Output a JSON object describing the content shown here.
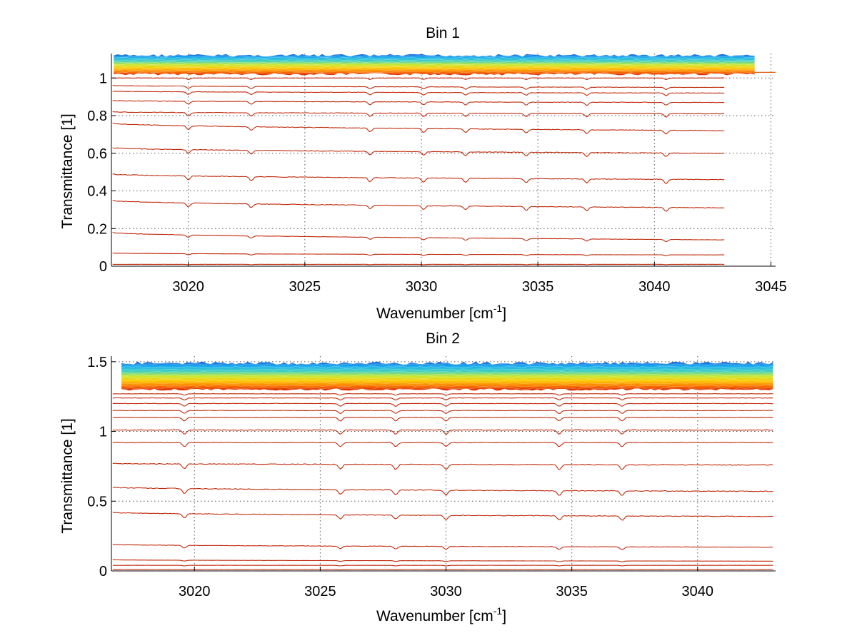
{
  "chart_data": [
    {
      "type": "line",
      "title": "Bin 1",
      "xlabel": "Wavenumber [cm",
      "xlabel_sup": "-1",
      "xlabel_end": "]",
      "ylabel": "Transmittance [1]",
      "xlim": [
        3016.7,
        3045.2
      ],
      "ylim": [
        0,
        1.13
      ],
      "xticks": [
        3020,
        3025,
        3030,
        3035,
        3040,
        3045
      ],
      "yticks": [
        0,
        0.2,
        0.4,
        0.6,
        0.8,
        1
      ],
      "ytick_labels": [
        "0",
        "0.2",
        "0.4",
        "0.6",
        "0.8",
        "1"
      ],
      "grid": true,
      "x_end": 3043,
      "dips": [
        3020,
        3022.7,
        3027.8,
        3030.1,
        3031.9,
        3034.5,
        3037.1,
        3040.5
      ],
      "series": [
        {
          "start": 0.01,
          "end": 0.01,
          "dip_scale": 0.002
        },
        {
          "start": 0.07,
          "end": 0.06,
          "dip_scale": 0.006
        },
        {
          "start": 0.18,
          "end": 0.14,
          "dip_scale": 0.012
        },
        {
          "start": 0.35,
          "end": 0.31,
          "dip_scale": 0.02
        },
        {
          "start": 0.49,
          "end": 0.46,
          "dip_scale": 0.022
        },
        {
          "start": 0.63,
          "end": 0.6,
          "dip_scale": 0.02
        },
        {
          "start": 0.76,
          "end": 0.72,
          "dip_scale": 0.02
        },
        {
          "start": 0.82,
          "end": 0.81,
          "dip_scale": 0.018
        },
        {
          "start": 0.88,
          "end": 0.87,
          "dip_scale": 0.016
        },
        {
          "start": 0.93,
          "end": 0.92,
          "dip_scale": 0.014
        },
        {
          "start": 0.96,
          "end": 0.95,
          "dip_scale": 0.012
        },
        {
          "start": 1.0,
          "end": 1.0,
          "dip_scale": 0.008
        }
      ],
      "band": {
        "x_start": 3016.8,
        "x_end": 3044.3,
        "y_low": 1.02,
        "y_high": 1.12
      },
      "flat_line": {
        "y": 1.03,
        "x_start": 3044.3,
        "x_end": 3045.2
      }
    },
    {
      "type": "line",
      "title": "Bin 2",
      "xlabel": "Wavenumber [cm",
      "xlabel_sup": "-1",
      "xlabel_end": "]",
      "ylabel": "Transmittance [1]",
      "xlim": [
        3016.7,
        3043.1
      ],
      "ylim": [
        0,
        1.54
      ],
      "xticks": [
        3020,
        3025,
        3030,
        3035,
        3040
      ],
      "yticks": [
        0,
        0.5,
        1,
        1.5
      ],
      "ytick_labels": [
        "0",
        "0.5",
        "1",
        "1.5"
      ],
      "grid": true,
      "x_end": 3043,
      "dips": [
        3019.6,
        3025.8,
        3028,
        3030,
        3034.5,
        3037
      ],
      "series": [
        {
          "start": 0.01,
          "end": 0.01,
          "dip_scale": 0.002
        },
        {
          "start": 0.04,
          "end": 0.04,
          "dip_scale": 0.004
        },
        {
          "start": 0.08,
          "end": 0.07,
          "dip_scale": 0.006
        },
        {
          "start": 0.19,
          "end": 0.17,
          "dip_scale": 0.02
        },
        {
          "start": 0.42,
          "end": 0.39,
          "dip_scale": 0.03
        },
        {
          "start": 0.6,
          "end": 0.57,
          "dip_scale": 0.035
        },
        {
          "start": 0.77,
          "end": 0.76,
          "dip_scale": 0.035
        },
        {
          "start": 0.92,
          "end": 0.92,
          "dip_scale": 0.03
        },
        {
          "start": 1.01,
          "end": 1.01,
          "dip_scale": 0.03
        },
        {
          "start": 1.1,
          "end": 1.1,
          "dip_scale": 0.025
        },
        {
          "start": 1.15,
          "end": 1.15,
          "dip_scale": 0.022
        },
        {
          "start": 1.2,
          "end": 1.2,
          "dip_scale": 0.02
        },
        {
          "start": 1.24,
          "end": 1.24,
          "dip_scale": 0.015
        },
        {
          "start": 1.27,
          "end": 1.27,
          "dip_scale": 0.01
        }
      ],
      "band": {
        "x_start": 3017.1,
        "x_end": 3043.0,
        "y_low": 1.3,
        "y_high": 1.49
      }
    }
  ],
  "colors": {
    "series_line": "#c0290b",
    "band_stops": [
      "#d41e00",
      "#ff7a00",
      "#ffc800",
      "#c8e830",
      "#40d0c0",
      "#1ab0f0",
      "#1a60d8"
    ],
    "grid": "#555555",
    "axis": "#000000"
  }
}
